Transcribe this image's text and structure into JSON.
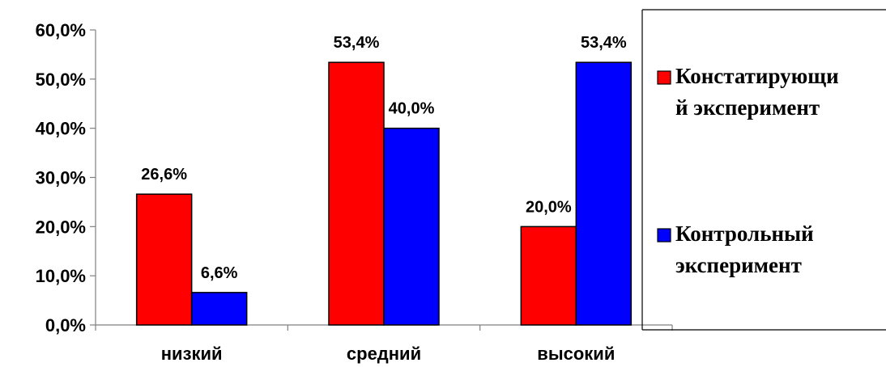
{
  "chart_data": {
    "type": "bar",
    "categories": [
      "низкий",
      "средний",
      "высокий"
    ],
    "series": [
      {
        "name": "Констатирующий эксперимент",
        "legend_lines": [
          "Констатирующи",
          "й эксперимент"
        ],
        "values": [
          26.6,
          53.4,
          20.0
        ],
        "data_labels": [
          "26,6%",
          "53,4%",
          "20,0%"
        ],
        "color": "#ff0000"
      },
      {
        "name": "Контрольный эксперимент",
        "legend_lines": [
          "Контрольный",
          "эксперимент"
        ],
        "values": [
          6.6,
          40.0,
          53.4
        ],
        "data_labels": [
          "6,6%",
          "40,0%",
          "53,4%"
        ],
        "color": "#0000ff"
      }
    ],
    "y_ticks": [
      {
        "value": 0,
        "label": "0,0%"
      },
      {
        "value": 10,
        "label": "10,0%"
      },
      {
        "value": 20,
        "label": "20,0%"
      },
      {
        "value": 30,
        "label": "30,0%"
      },
      {
        "value": 40,
        "label": "40,0%"
      },
      {
        "value": 50,
        "label": "50,0%"
      },
      {
        "value": 60,
        "label": "60,0%"
      }
    ],
    "ylim": [
      0,
      60
    ],
    "title": "",
    "xlabel": "",
    "ylabel": "",
    "grid": false,
    "legend_position": "right"
  }
}
